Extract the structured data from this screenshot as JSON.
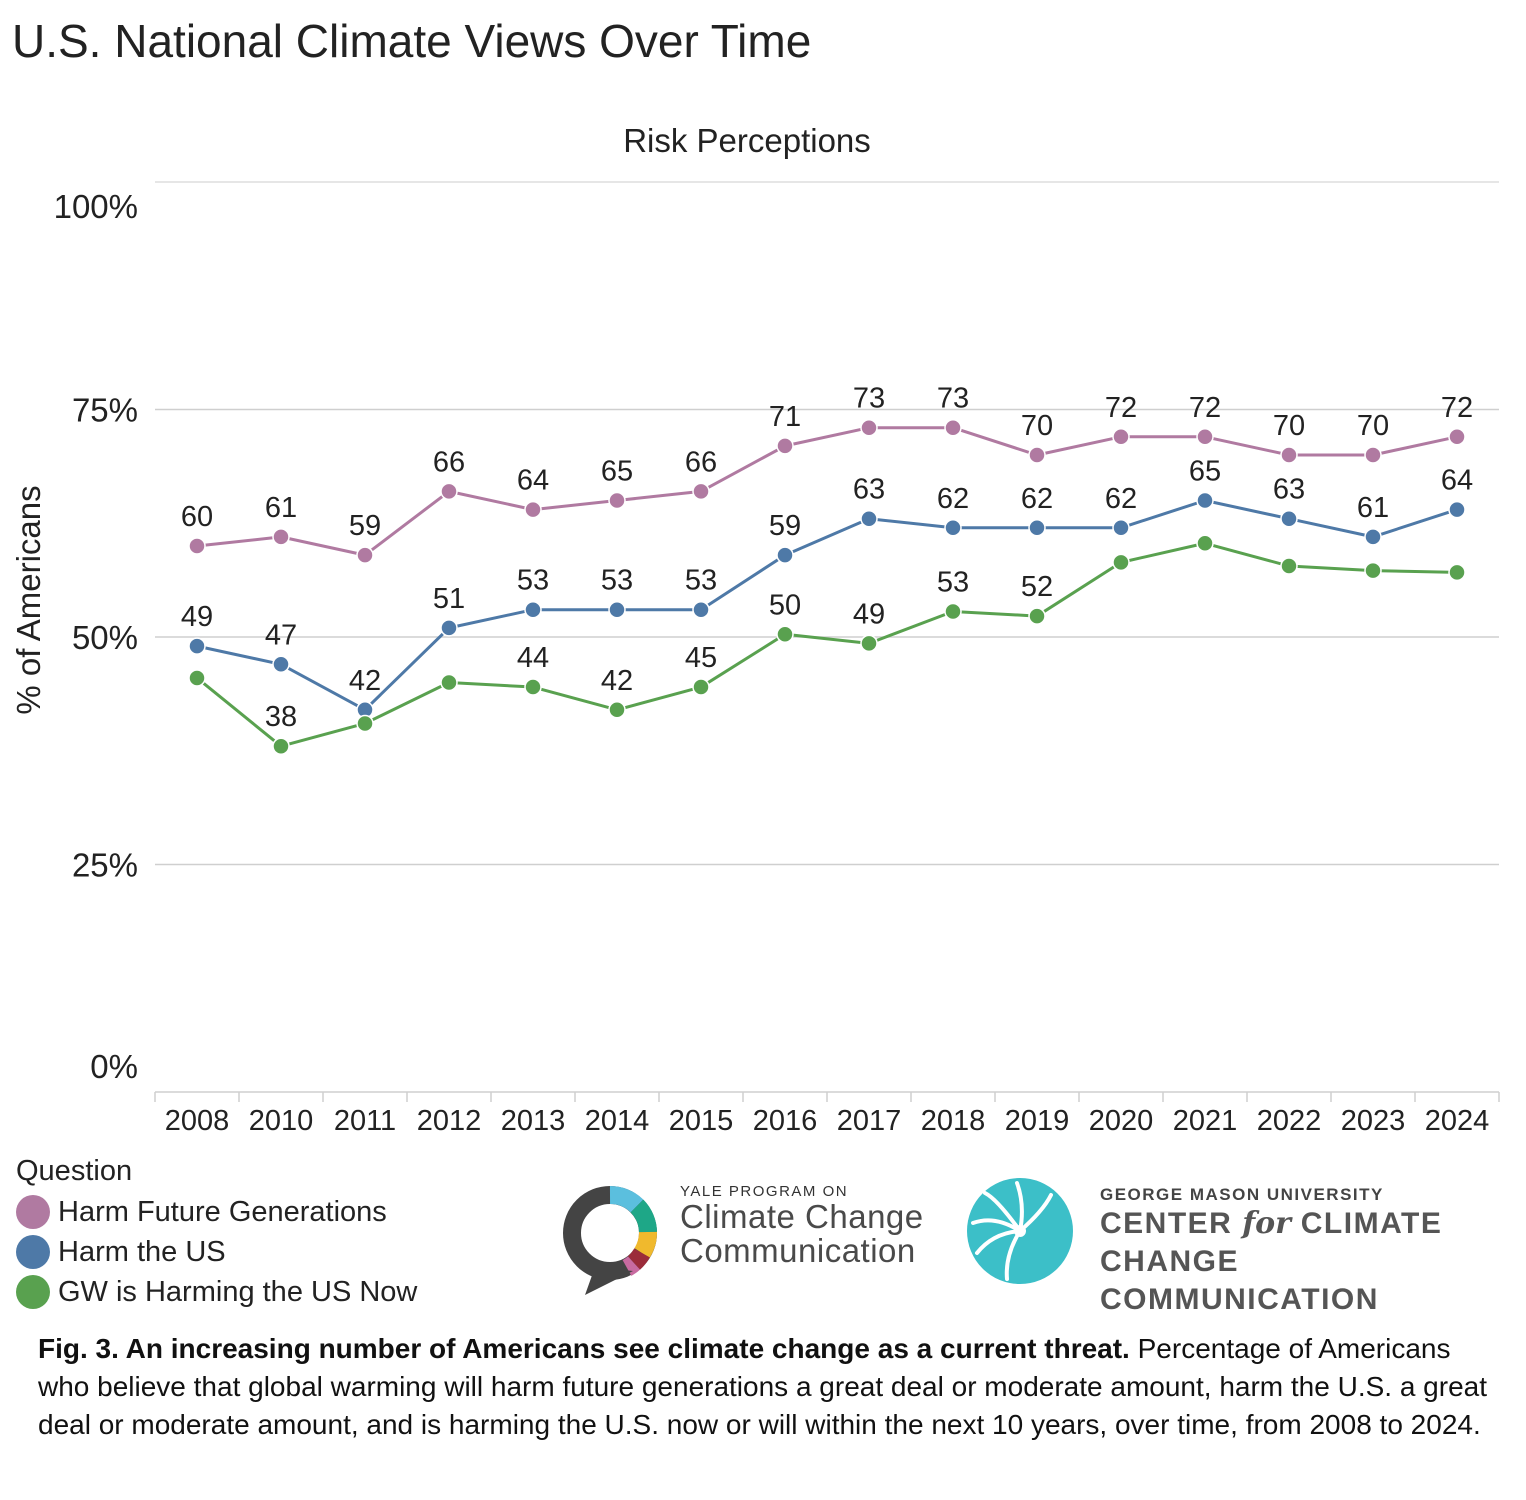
{
  "page_title": "U.S. National Climate Views Over Time",
  "chart_data": {
    "type": "line",
    "title": "Risk Perceptions",
    "ylabel": "% of Americans",
    "xlabel": "",
    "categories": [
      "2008",
      "2010",
      "2011",
      "2012",
      "2013",
      "2014",
      "2015",
      "2016",
      "2017",
      "2018",
      "2019",
      "2020",
      "2021",
      "2022",
      "2023",
      "2024"
    ],
    "y_ticks": [
      0,
      25,
      50,
      75,
      100
    ],
    "y_tick_labels": [
      "0%",
      "25%",
      "50%",
      "75%",
      "100%"
    ],
    "ylim": [
      0,
      100
    ],
    "grid": true,
    "series": [
      {
        "name": "Harm Future Generations",
        "color": "#b07aa1",
        "label_position": "above",
        "values": [
          60,
          61,
          59,
          66,
          64,
          65,
          66,
          71,
          73,
          73,
          70,
          72,
          72,
          70,
          70,
          72
        ],
        "labels": [
          "60",
          "61",
          "59",
          "66",
          "64",
          "65",
          "66",
          "71",
          "73",
          "73",
          "70",
          "72",
          "72",
          "70",
          "70",
          "72"
        ]
      },
      {
        "name": "Harm the US",
        "color": "#4e79a7",
        "label_position": "above",
        "values": [
          49,
          47,
          42,
          51,
          53,
          53,
          53,
          59,
          63,
          62,
          62,
          62,
          65,
          63,
          61,
          64
        ],
        "labels": [
          "49",
          "47",
          "42",
          "51",
          "53",
          "53",
          "53",
          "59",
          "63",
          "62",
          "62",
          "62",
          "65",
          "63",
          "61",
          "64"
        ]
      },
      {
        "name": "GW is Harming the US Now",
        "color": "#59a14f",
        "label_position": "above",
        "values": [
          45.5,
          38,
          40.5,
          45,
          44.5,
          42,
          44.5,
          50.3,
          49.3,
          52.8,
          52.3,
          58.2,
          60.3,
          57.8,
          57.3,
          57.1
        ],
        "labels": [
          "",
          "38",
          "",
          "",
          "44",
          "42",
          "45",
          "50",
          "49",
          "53",
          "52",
          "",
          "",
          "",
          "",
          ""
        ]
      }
    ]
  },
  "legend": {
    "title": "Question",
    "items": [
      {
        "label": "Harm Future Generations",
        "color": "#b07aa1"
      },
      {
        "label": "Harm the US",
        "color": "#4e79a7"
      },
      {
        "label": "GW is Harming the US Now",
        "color": "#59a14f"
      }
    ],
    "placement": "bottom-left"
  },
  "logos": {
    "yale": {
      "line1": "YALE PROGRAM ON",
      "line2": "Climate Change",
      "line3": "Communication"
    },
    "gmu": {
      "line1": "GEORGE MASON UNIVERSITY",
      "line2_a": "CENTER ",
      "line2_b": "for",
      "line2_c": " CLIMATE CHANGE",
      "line3": "COMMUNICATION"
    }
  },
  "caption": {
    "bold": "Fig. 3. An increasing number of Americans see climate change as a current threat.",
    "text": " Percentage of Americans who believe that global warming will harm future generations a great deal or moderate amount, harm the U.S. a great deal or moderate amount, and is harming the U.S. now or will within the next 10 years, over time, from 2008 to 2024."
  }
}
